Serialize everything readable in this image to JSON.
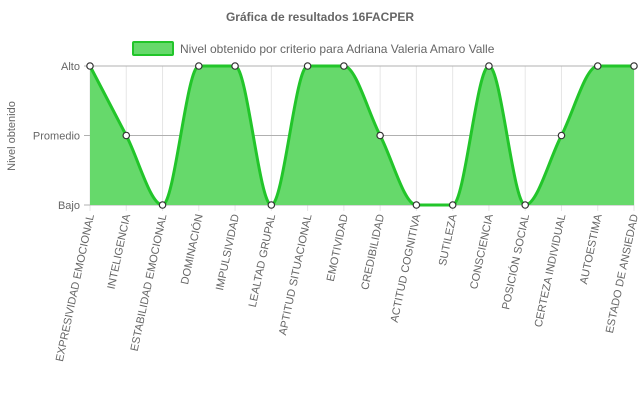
{
  "chart_data": {
    "type": "area",
    "title": "Gráfica de resultados 16FACPER",
    "ylabel": "Nivel obtenido",
    "xlabel": "",
    "y_levels": [
      "Bajo",
      "Promedio",
      "Alto"
    ],
    "ylim": [
      1,
      3
    ],
    "categories": [
      "EXPRESIVIDAD EMOCIONAL",
      "INTELIGENCIA",
      "ESTABILIDAD EMOCIONAL",
      "DOMINACIÓN",
      "IMPULSIVIDAD",
      "LEALTAD GRUPAL",
      "APTITUD SITUACIONAL",
      "EMOTIVIDAD",
      "CREDIBILIDAD",
      "ACTITUD COGNITIVA",
      "SUTILEZA",
      "CONSCIENCIA",
      "POSICIÓN SOCIAL",
      "CERTEZA INDIVIDUAL",
      "AUTOESTIMA",
      "ESTADO DE ANSIEDAD"
    ],
    "series": [
      {
        "name": "Nivel obtenido por criterio para Adriana Valeria Amaro Valle",
        "values": [
          3,
          2,
          1,
          3,
          3,
          1,
          3,
          3,
          2,
          1,
          1,
          3,
          1,
          2,
          3,
          3
        ],
        "value_labels": [
          "Alto",
          "Promedio",
          "Bajo",
          "Alto",
          "Alto",
          "Bajo",
          "Alto",
          "Alto",
          "Promedio",
          "Bajo",
          "Bajo",
          "Alto",
          "Bajo",
          "Promedio",
          "Alto",
          "Alto"
        ]
      }
    ],
    "grid": true,
    "legend_position": "top",
    "colors": {
      "fill": "#66d96b",
      "line": "#22c52a",
      "point_fill": "#ffffff",
      "point_stroke": "#333333",
      "grid": "#e6e6e6",
      "grid_strong": "#b0b0b0",
      "text": "#666666"
    }
  }
}
